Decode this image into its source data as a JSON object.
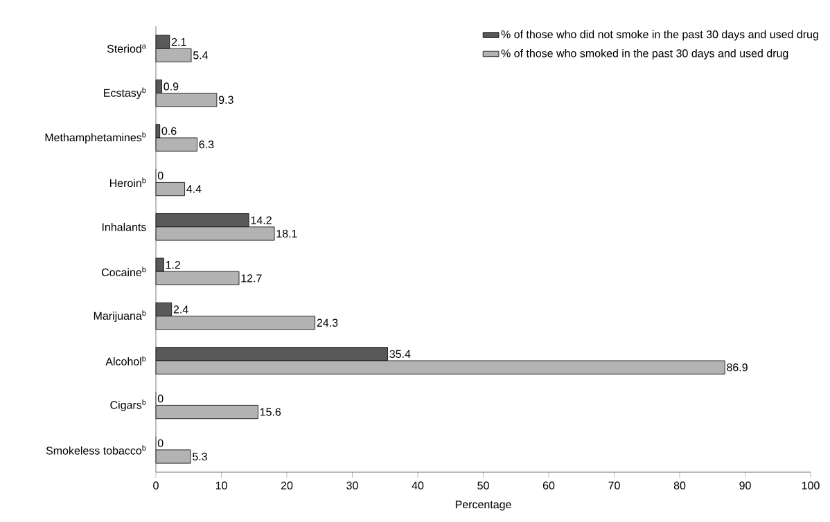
{
  "chart_data": {
    "type": "bar",
    "orientation": "horizontal",
    "xlabel": "Percentage",
    "categories": [
      "Steriod$^{a}$",
      "Ecstasy$^{b}$",
      "Methamphetamines$^{b}$",
      "Heroin$^{b}$",
      "Inhalants",
      "Cocaine$^{b}$",
      "Marijuana$^{b}$",
      "Alcohol$^{b}$",
      "Cigars$^{b}$",
      "Smokeless tobacco$^{b}$"
    ],
    "series": [
      {
        "name": "% of those who did not smoke in the past 30 days and used drug",
        "color": "#595959",
        "values": [
          2.1,
          0.9,
          0.6,
          0,
          14.2,
          1.2,
          2.4,
          35.4,
          0,
          0
        ]
      },
      {
        "name": "% of those who smoked in the past 30 days and used drug",
        "color": "#b3b3b3",
        "values": [
          5.4,
          9.3,
          6.3,
          4.4,
          18.1,
          12.7,
          24.3,
          86.9,
          15.6,
          5.3
        ]
      }
    ],
    "xlim": [
      0,
      100
    ],
    "xticks": [
      0,
      10,
      20,
      30,
      40,
      50,
      60,
      70,
      80,
      90,
      100
    ],
    "data_labels": true,
    "legend": "top right"
  }
}
